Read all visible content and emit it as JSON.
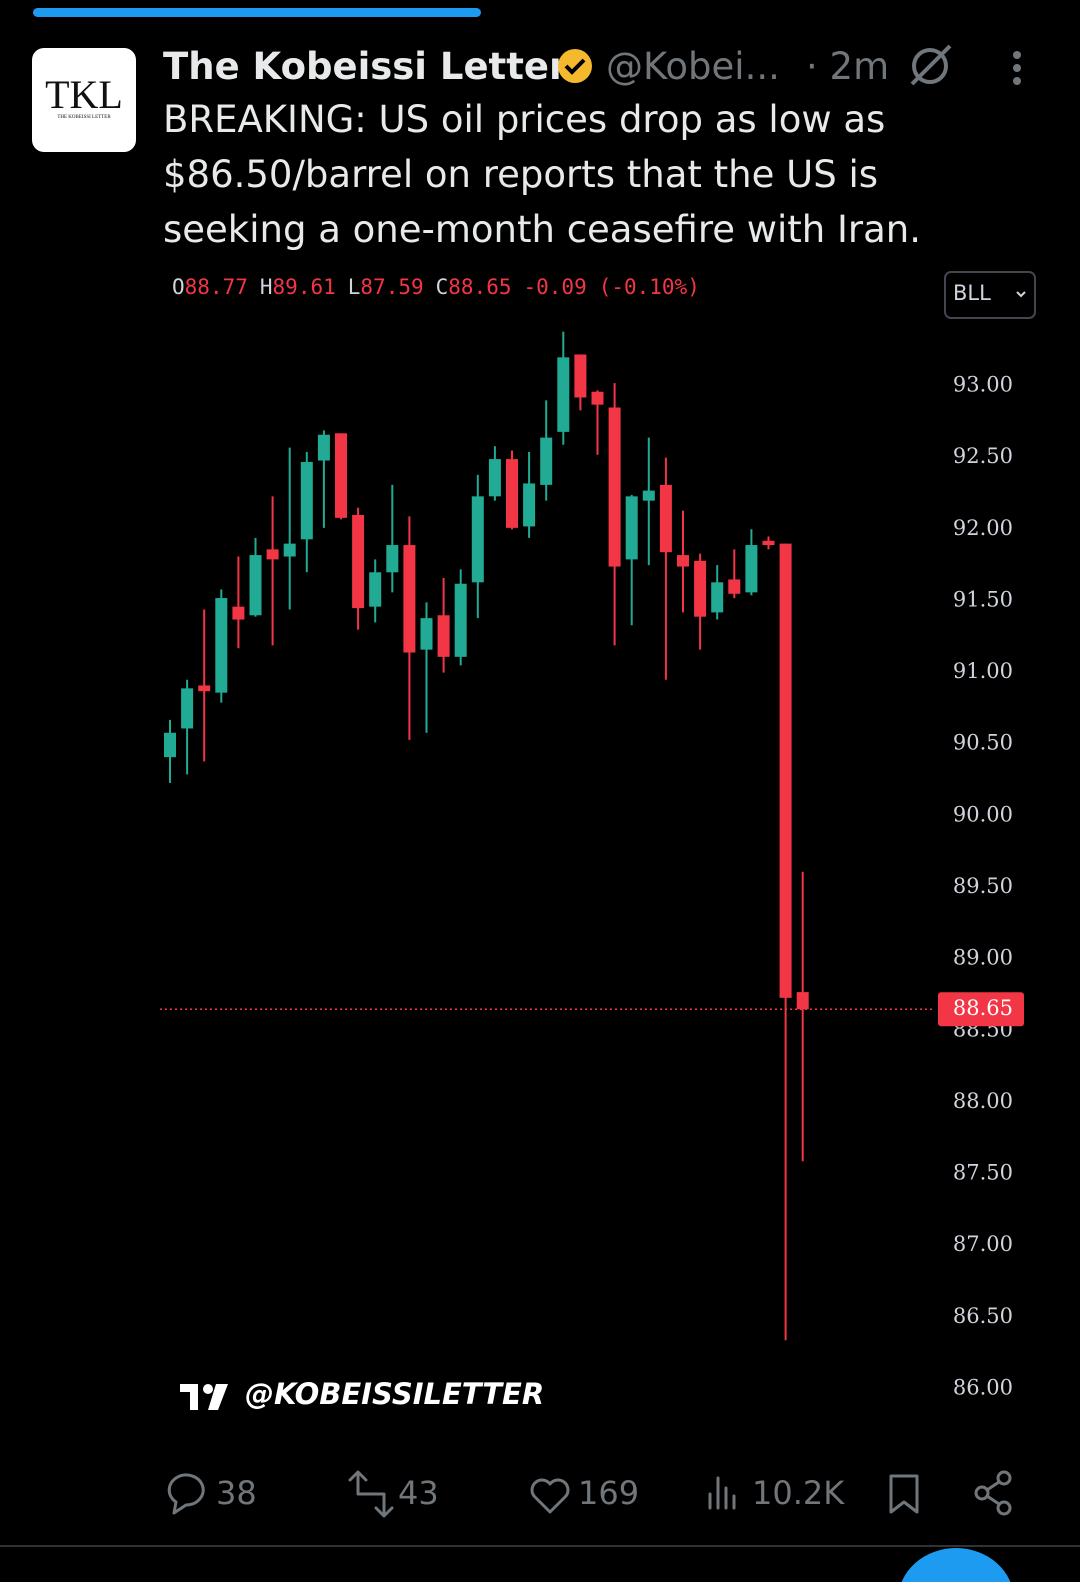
{
  "tweet": {
    "avatar_text": "TKL",
    "avatar_subtext": "THE KOBEISSI LETTER",
    "name": "The Kobeissi Letter",
    "handle": "@Kobei...",
    "time": "· 2m",
    "text_lines": [
      "BREAKING: US oil prices drop as low as",
      "$86.50/barrel on reports that the US is",
      "seeking a one-month ceasefire with Iran."
    ],
    "replies": "38",
    "reposts": "43",
    "likes": "169",
    "views": "10.2K"
  },
  "chart_data": {
    "type": "candlestick",
    "symbol": "BLL",
    "watermark": "@KOBEISSILETTER",
    "header": {
      "o": "O",
      "open": "88.77",
      "h": "H",
      "high": "89.61",
      "l": "L",
      "low": "87.59",
      "c": "C",
      "close": "88.65",
      "change": "-0.09",
      "change_pct": "(-0.10%)"
    },
    "up_color": "#22ab94",
    "down_color": "#f23645",
    "open": [
      90.41,
      90.61,
      90.91,
      90.86,
      91.46,
      91.4,
      91.86,
      91.81,
      91.93,
      92.48,
      92.67,
      92.1,
      91.46,
      91.7,
      91.89,
      91.16,
      91.4,
      91.11,
      91.63,
      92.23,
      92.49,
      92.02,
      92.31,
      92.68,
      93.22,
      92.96,
      92.85,
      91.79,
      92.2,
      92.31,
      91.82,
      91.78,
      91.42,
      91.65,
      91.56,
      91.92,
      91.9,
      88.77
    ],
    "high": [
      90.67,
      90.95,
      91.44,
      91.58,
      91.81,
      91.94,
      92.23,
      92.57,
      92.54,
      92.69,
      92.67,
      92.15,
      91.79,
      92.31,
      92.09,
      91.49,
      91.66,
      91.72,
      92.38,
      92.58,
      92.55,
      92.54,
      92.9,
      93.38,
      93.22,
      92.97,
      93.02,
      92.24,
      92.64,
      92.5,
      92.13,
      91.83,
      91.75,
      91.86,
      92.0,
      91.95,
      91.9,
      89.61
    ],
    "low": [
      90.23,
      90.29,
      90.38,
      90.79,
      91.17,
      91.39,
      91.19,
      91.44,
      91.7,
      92.01,
      92.07,
      91.3,
      91.35,
      91.56,
      90.53,
      90.58,
      91.0,
      91.05,
      91.38,
      92.2,
      92.0,
      91.94,
      92.2,
      92.59,
      92.83,
      92.52,
      91.19,
      91.33,
      91.75,
      90.95,
      91.42,
      91.16,
      91.37,
      91.52,
      91.54,
      91.86,
      86.34,
      87.59
    ],
    "close": [
      90.58,
      90.89,
      90.87,
      91.52,
      91.37,
      91.82,
      91.79,
      91.9,
      92.47,
      92.66,
      92.08,
      91.45,
      91.7,
      91.89,
      91.14,
      91.38,
      91.11,
      91.62,
      92.23,
      92.49,
      92.01,
      92.32,
      92.64,
      93.2,
      92.92,
      92.87,
      91.74,
      92.23,
      92.27,
      91.84,
      91.74,
      91.39,
      91.63,
      91.55,
      91.89,
      91.89,
      88.73,
      88.65
    ],
    "ylim": [
      85.7,
      93.4
    ],
    "yticks": [
      {
        "value": 93,
        "label": "93.00"
      },
      {
        "value": 92.5,
        "label": "92.50"
      },
      {
        "value": 92,
        "label": "92.00"
      },
      {
        "value": 91.5,
        "label": "91.50"
      },
      {
        "value": 91,
        "label": "91.00"
      },
      {
        "value": 90.5,
        "label": "90.50"
      },
      {
        "value": 90,
        "label": "90.00"
      },
      {
        "value": 89.5,
        "label": "89.50"
      },
      {
        "value": 89,
        "label": "89.00"
      },
      {
        "value": 88.5,
        "label": "88.50"
      },
      {
        "value": 88,
        "label": "88.00"
      },
      {
        "value": 87.5,
        "label": "87.50"
      },
      {
        "value": 87,
        "label": "87.00"
      },
      {
        "value": 86.5,
        "label": "86.50"
      },
      {
        "value": 86,
        "label": "86.00"
      }
    ],
    "last_price": {
      "value": 88.65,
      "label": "88.65"
    }
  }
}
